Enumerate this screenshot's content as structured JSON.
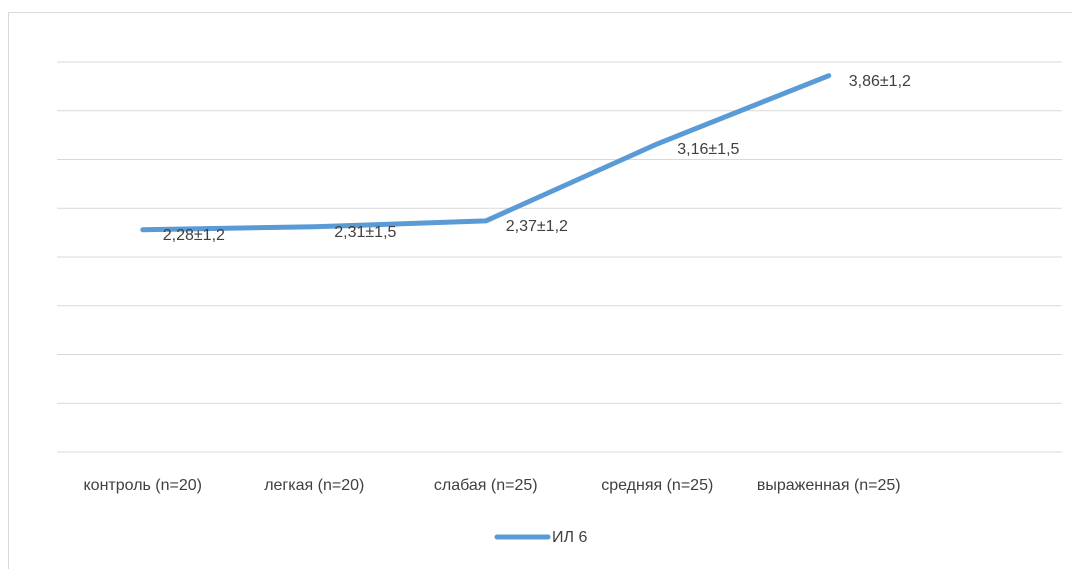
{
  "chart_data": {
    "type": "line",
    "categories": [
      "контроль (n=20)",
      "легкая  (n=20)",
      "слабая (n=25)",
      "средняя (n=25)",
      "выраженная (n=25)"
    ],
    "series": [
      {
        "name": "ИЛ 6",
        "color": "#5b9bd5",
        "values": [
          2.28,
          2.31,
          2.37,
          3.16,
          3.86
        ],
        "value_labels": [
          "2,28±1,2",
          "2,31±1,5",
          "2,37±1,2",
          "3,16±1,5",
          "3,86±1,2"
        ]
      }
    ],
    "ylim": [
      0,
      4
    ],
    "yticks": [
      0,
      0.5,
      1,
      1.5,
      2,
      2.5,
      3,
      3.5,
      4
    ],
    "grid": true,
    "legend": "bottom"
  }
}
